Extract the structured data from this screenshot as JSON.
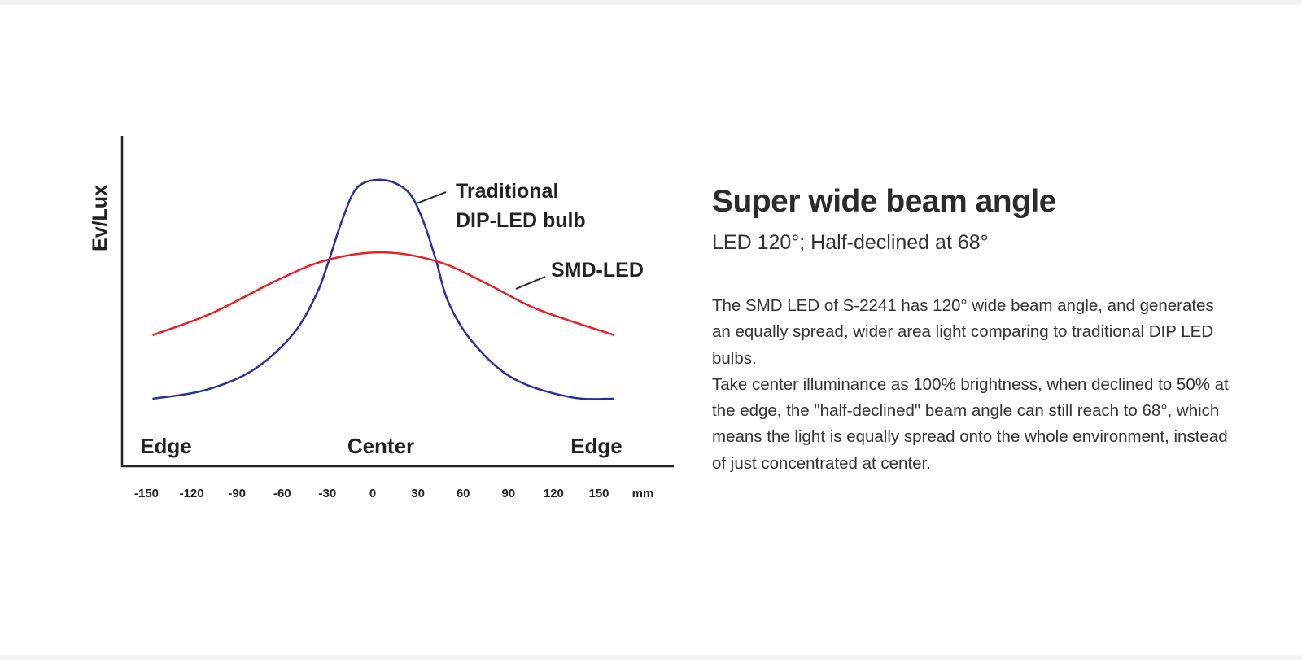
{
  "chart_data": {
    "type": "line",
    "ylabel": "Ev/Lux",
    "xunit": "mm",
    "xticks": [
      -150,
      -120,
      -90,
      -60,
      -30,
      0,
      30,
      60,
      90,
      120,
      150
    ],
    "xlim": [
      -160,
      200
    ],
    "ylim": [
      0,
      100
    ],
    "region_labels": [
      "Edge",
      "Center",
      "Edge"
    ],
    "series": [
      {
        "name": "Traditional DIP-LED bulb",
        "label_lines": [
          "Traditional",
          "DIP-LED bulb"
        ],
        "color": "#2b2f9a",
        "x": [
          -146,
          -112,
          -80,
          -53,
          -37,
          -29,
          -20,
          -10,
          6.5,
          23,
          33,
          42,
          50,
          66,
          93,
          131,
          160
        ],
        "y": [
          20.5,
          23,
          29,
          40,
          52.5,
          62.5,
          75,
          84.7,
          86.9,
          83.5,
          75,
          62.5,
          50,
          37.8,
          26.7,
          21,
          20.5
        ]
      },
      {
        "name": "SMD-LED",
        "label_lines": [
          "SMD-LED"
        ],
        "color": "#e8202a",
        "x": [
          -146,
          -107,
          -64,
          -31,
          6.5,
          44,
          77,
          109,
          160
        ],
        "y": [
          39.8,
          46.4,
          56.3,
          62.5,
          64.9,
          62,
          55.1,
          47.7,
          39.8
        ]
      }
    ]
  },
  "text": {
    "title": "Super wide beam angle",
    "subtitle": "LED 120°; Half-declined at 68°",
    "paragraph1": "The SMD LED of S-2241 has 120° wide beam angle, and generates an equally spread, wider area light comparing to traditional DIP LED bulbs.",
    "paragraph2": "Take center illuminance as 100% brightness, when declined to 50% at the edge, the \"half-declined\" beam angle can still reach to 68°, which means the light is equally spread onto the whole environment, instead of just concentrated at center."
  }
}
